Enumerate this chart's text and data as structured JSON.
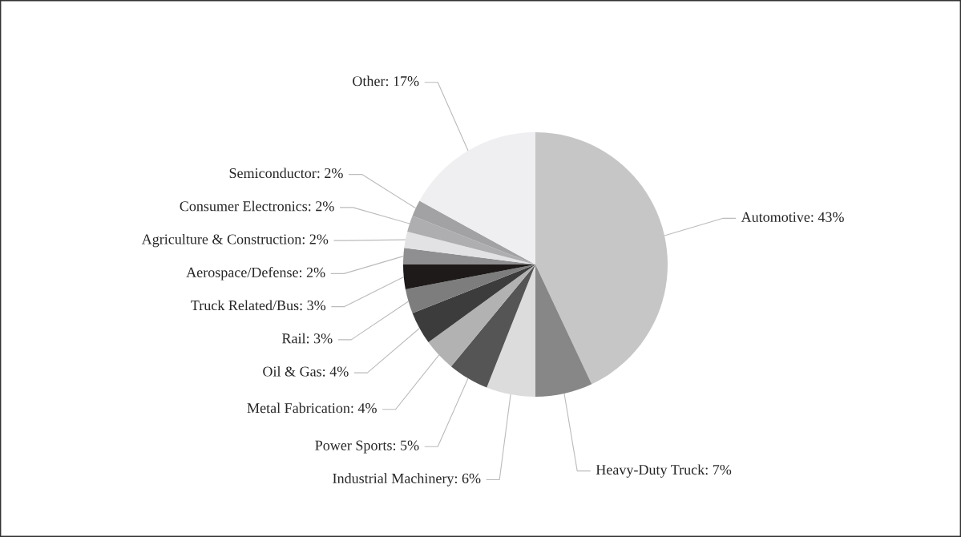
{
  "chart_data": {
    "type": "pie",
    "categories": [
      "Automotive: 43%",
      "Heavy-Duty Truck: 7%",
      "Industrial Machinery: 6%",
      "Power Sports: 5%",
      "Metal Fabrication: 4%",
      "Oil & Gas: 4%",
      "Rail: 3%",
      "Truck Related/Bus: 3%",
      "Aerospace/Defense: 2%",
      "Agriculture & Construction: 2%",
      "Consumer Electronics: 2%",
      "Semiconductor: 2%",
      "Other: 17%"
    ],
    "values": [
      43,
      7,
      6,
      5,
      4,
      4,
      3,
      3,
      2,
      2,
      2,
      2,
      17
    ],
    "colors": [
      "#c6c6c6",
      "#878787",
      "#dcdcdc",
      "#555555",
      "#b2b2b2",
      "#3c3c3c",
      "#7d7d7d",
      "#1e1a1a",
      "#8f8f91",
      "#e2e2e4",
      "#aeaeb0",
      "#a2a2a4",
      "#efeff1"
    ],
    "legend": false
  }
}
